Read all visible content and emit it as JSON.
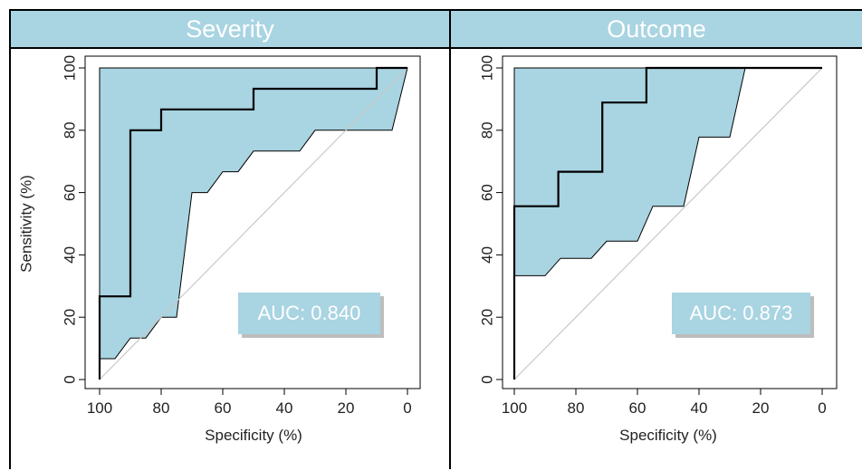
{
  "colors": {
    "header_bg": "#a9d4e2",
    "ci_fill": "#a9d4e2",
    "curve": "#000000",
    "diagonal": "#c8c8c8",
    "auc_box": "#a9d4e2"
  },
  "chart_data": [
    {
      "type": "line",
      "title": "Severity",
      "xlabel": "Specificity (%)",
      "ylabel": "Sensitivity (%)",
      "xlim": [
        100,
        0
      ],
      "ylim": [
        0,
        100
      ],
      "x_ticks": [
        "100",
        "80",
        "60",
        "40",
        "20",
        "0"
      ],
      "y_ticks": [
        "0",
        "20",
        "40",
        "60",
        "80",
        "100"
      ],
      "auc_label": "AUC: 0.840",
      "roc_curve": [
        [
          100,
          0
        ],
        [
          100,
          26.7
        ],
        [
          90,
          26.7
        ],
        [
          90,
          80
        ],
        [
          80,
          80
        ],
        [
          80,
          86.7
        ],
        [
          50,
          86.7
        ],
        [
          50,
          93.3
        ],
        [
          10,
          93.3
        ],
        [
          10,
          100
        ],
        [
          0,
          100
        ]
      ],
      "ci_upper": [
        [
          100,
          100
        ],
        [
          0,
          100
        ]
      ],
      "ci_lower": [
        [
          0,
          100
        ],
        [
          5,
          80
        ],
        [
          30,
          80
        ],
        [
          35,
          73.3
        ],
        [
          50,
          73.3
        ],
        [
          55,
          66.7
        ],
        [
          60,
          66.7
        ],
        [
          65,
          60
        ],
        [
          70,
          60
        ],
        [
          75,
          20
        ],
        [
          80,
          20
        ],
        [
          85,
          13.3
        ],
        [
          90,
          13.3
        ],
        [
          95,
          6.7
        ],
        [
          100,
          6.7
        ]
      ]
    },
    {
      "type": "line",
      "title": "Outcome",
      "xlabel": "Specificity (%)",
      "ylabel": "",
      "xlim": [
        100,
        0
      ],
      "ylim": [
        0,
        100
      ],
      "x_ticks": [
        "100",
        "80",
        "60",
        "40",
        "20",
        "0"
      ],
      "y_ticks": [
        "0",
        "20",
        "40",
        "60",
        "80",
        "100"
      ],
      "auc_label": "AUC: 0.873",
      "roc_curve": [
        [
          100,
          0
        ],
        [
          100,
          55.6
        ],
        [
          85.7,
          55.6
        ],
        [
          85.7,
          66.7
        ],
        [
          71.4,
          66.7
        ],
        [
          71.4,
          88.9
        ],
        [
          57.1,
          88.9
        ],
        [
          57.1,
          100
        ],
        [
          0,
          100
        ]
      ],
      "ci_upper": [
        [
          100,
          100
        ],
        [
          25,
          100
        ]
      ],
      "ci_lower": [
        [
          25,
          100
        ],
        [
          30,
          77.8
        ],
        [
          40,
          77.8
        ],
        [
          45,
          55.6
        ],
        [
          55,
          55.6
        ],
        [
          60,
          44.4
        ],
        [
          70,
          44.4
        ],
        [
          75,
          38.9
        ],
        [
          85,
          38.9
        ],
        [
          90,
          33.3
        ],
        [
          100,
          33.3
        ]
      ]
    }
  ]
}
